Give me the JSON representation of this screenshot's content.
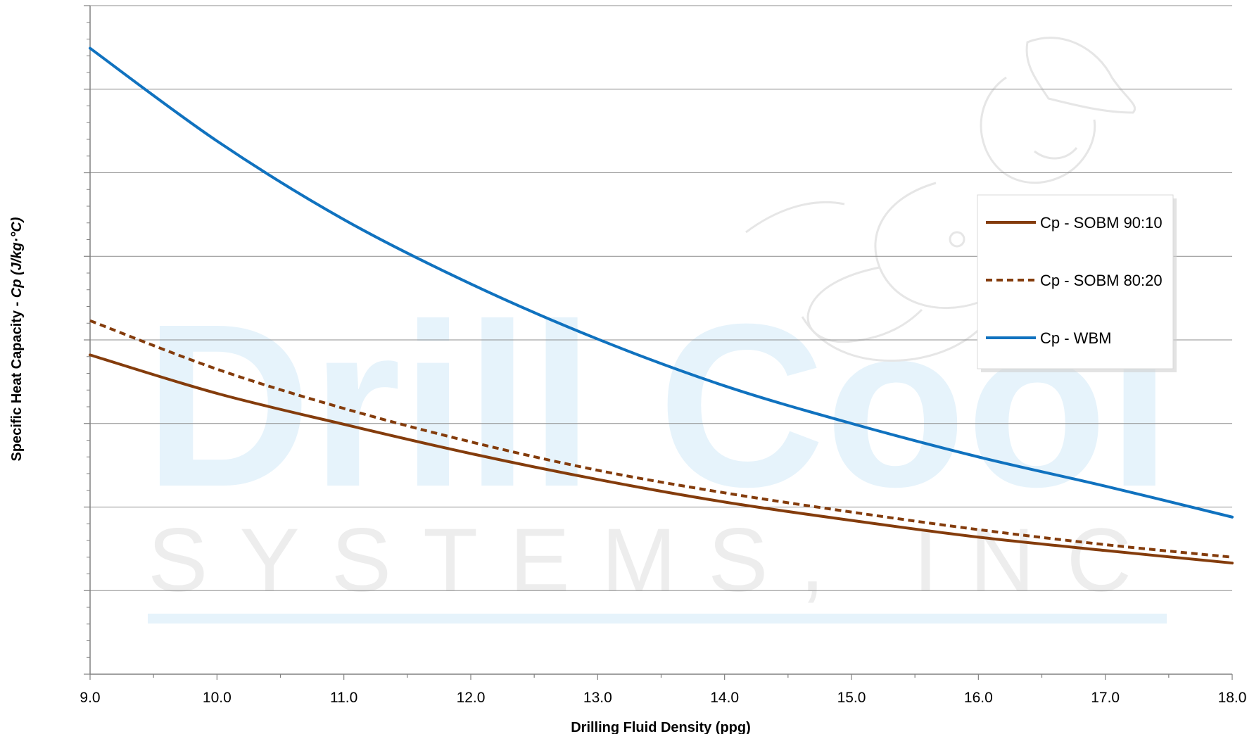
{
  "chart_data": {
    "type": "line",
    "title": "",
    "xlabel": "Drilling Fluid Density (ppg)",
    "ylabel": "Specific Heat Capacity - Cp (J/kg·°C)",
    "ylabel_parts": {
      "prefix": "Specific Heat Capacity - ",
      "italic": "Cp (J/kg·°C)"
    },
    "xlim": [
      9.0,
      18.0
    ],
    "ylim": [
      0,
      8
    ],
    "x_tick_labels": [
      "9.0",
      "10.0",
      "11.0",
      "12.0",
      "13.0",
      "14.0",
      "15.0",
      "16.0",
      "17.0",
      "18.0"
    ],
    "y_tick_labels": [],
    "grid": "horizontal",
    "legend_position": "right",
    "series": [
      {
        "name": "Cp - SOBM 90:10",
        "color": "#843c0c",
        "style": "solid",
        "x": [
          9,
          10,
          11,
          12,
          13,
          14,
          15,
          16,
          17,
          18
        ],
        "y": [
          3.82,
          3.36,
          2.99,
          2.64,
          2.33,
          2.06,
          1.84,
          1.64,
          1.48,
          1.33
        ]
      },
      {
        "name": "Cp - SOBM 80:20",
        "color": "#843c0c",
        "style": "dashed",
        "x": [
          9,
          10,
          11,
          12,
          13,
          14,
          15,
          16,
          17,
          18
        ],
        "y": [
          4.23,
          3.65,
          3.18,
          2.78,
          2.44,
          2.17,
          1.94,
          1.73,
          1.55,
          1.4
        ]
      },
      {
        "name": "Cp - WBM",
        "color": "#1072bf",
        "style": "solid",
        "x": [
          9,
          10,
          11,
          12,
          13,
          14,
          15,
          16,
          17,
          18
        ],
        "y": [
          7.49,
          6.38,
          5.44,
          4.67,
          4.01,
          3.45,
          3.0,
          2.6,
          2.25,
          1.88
        ]
      }
    ]
  },
  "watermark": {
    "logo_text": "Drill Cool",
    "company_text": "SYSTEMS, INC",
    "logo_color": "#e6f3fb",
    "company_color": "#ededed"
  }
}
